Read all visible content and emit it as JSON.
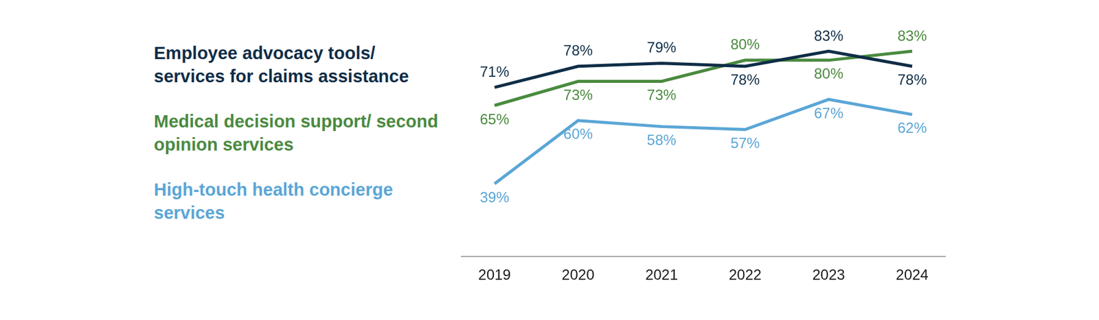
{
  "chart_data": {
    "type": "line",
    "categories": [
      "2019",
      "2020",
      "2021",
      "2022",
      "2023",
      "2024"
    ],
    "series": [
      {
        "name": "Employee advocacy tools/ services for claims assistance",
        "color": "#0f2d47",
        "values": [
          71,
          78,
          79,
          78,
          83,
          78
        ],
        "value_labels": [
          "71%",
          "78%",
          "79%",
          "78%",
          "83%",
          "78%"
        ]
      },
      {
        "name": "Medical decision support/ second opinion services",
        "color": "#4a8a3f",
        "values": [
          65,
          73,
          73,
          80,
          80,
          83
        ],
        "value_labels": [
          "65%",
          "73%",
          "73%",
          "80%",
          "80%",
          "83%"
        ]
      },
      {
        "name": "High-touch health concierge services",
        "color": "#5aa6d6",
        "values": [
          39,
          60,
          58,
          57,
          67,
          62
        ],
        "value_labels": [
          "39%",
          "60%",
          "58%",
          "57%",
          "67%",
          "62%"
        ]
      }
    ],
    "ylim": [
      15,
      100
    ],
    "tick_labels": "x",
    "grid": false,
    "data_labels": true,
    "legend": "left"
  }
}
